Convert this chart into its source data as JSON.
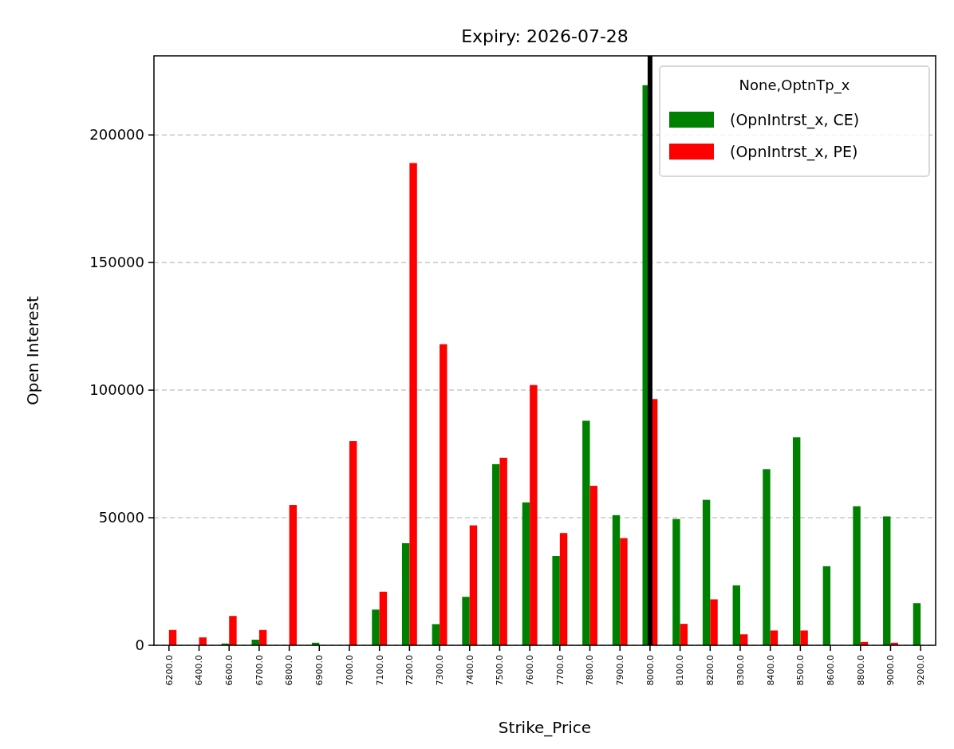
{
  "chart_data": {
    "type": "bar",
    "title": "Expiry: 2026-07-28",
    "xlabel": "Strike_Price",
    "ylabel": "Open Interest",
    "legend_title": "None,OptnTp_x",
    "categories": [
      "6200.0",
      "6400.0",
      "6600.0",
      "6700.0",
      "6800.0",
      "6900.0",
      "7000.0",
      "7100.0",
      "7200.0",
      "7300.0",
      "7400.0",
      "7500.0",
      "7600.0",
      "7700.0",
      "7800.0",
      "7900.0",
      "8000.0",
      "8100.0",
      "8200.0",
      "8300.0",
      "8400.0",
      "8500.0",
      "8600.0",
      "8800.0",
      "9000.0",
      "9200.0"
    ],
    "series": [
      {
        "name": "(OpnIntrst_x, CE)",
        "color": "#008000",
        "values": [
          0,
          0,
          700,
          2200,
          0,
          1000,
          0,
          14000,
          40000,
          8300,
          19000,
          71000,
          56000,
          35000,
          88000,
          51000,
          219500,
          49500,
          57000,
          23500,
          69000,
          81500,
          31000,
          54500,
          50500,
          16500
        ]
      },
      {
        "name": "(OpnIntrst_x, PE)",
        "color": "#ff0000",
        "values": [
          6000,
          3100,
          11500,
          6000,
          55000,
          0,
          80000,
          21000,
          189000,
          118000,
          47000,
          73500,
          102000,
          44000,
          62500,
          42000,
          96500,
          8400,
          18000,
          4300,
          5800,
          5800,
          0,
          1300,
          1000,
          0
        ]
      }
    ],
    "ylim": [
      0,
      231000
    ],
    "yticks": [
      0,
      50000,
      100000,
      150000,
      200000
    ],
    "grid": "y",
    "legend": "top right",
    "ref_lines": [
      {
        "axis": "x",
        "value": "8000.0",
        "color": "#000000"
      }
    ]
  }
}
